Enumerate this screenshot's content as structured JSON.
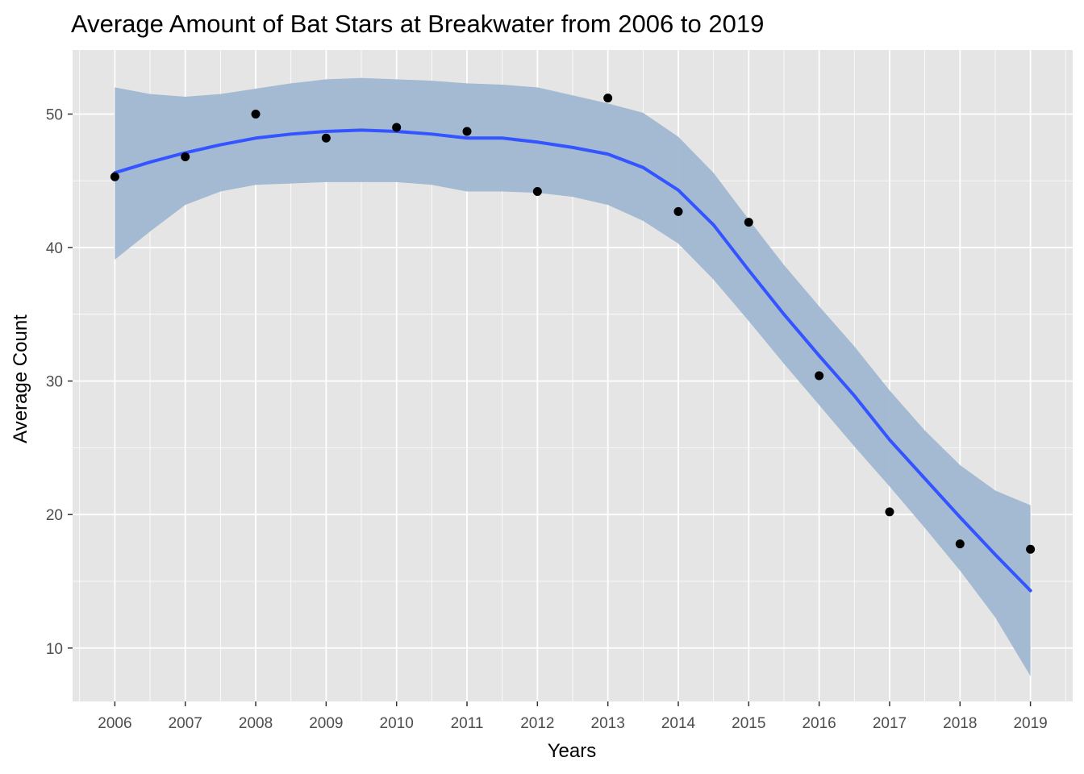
{
  "chart_data": {
    "type": "scatter",
    "title": "Average Amount of Bat Stars at Breakwater from 2006 to 2019",
    "xlabel": "Years",
    "ylabel": "Average Count",
    "x_tick_labels": [
      "2006",
      "2007",
      "2008",
      "2009",
      "2010",
      "2011",
      "2012",
      "2013",
      "2014",
      "2015",
      "2016",
      "2017",
      "2018",
      "2019"
    ],
    "y_tick_labels": [
      "10",
      "20",
      "30",
      "40",
      "50"
    ],
    "xlim": [
      2005.4,
      2019.6
    ],
    "ylim": [
      6,
      54.8
    ],
    "grid": true,
    "legend": "none",
    "points": {
      "x": [
        2006,
        2007,
        2008,
        2009,
        2010,
        2011,
        2012,
        2013,
        2014,
        2015,
        2016,
        2017,
        2018,
        2019
      ],
      "y": [
        45.3,
        46.8,
        50.0,
        48.2,
        49.0,
        48.7,
        44.2,
        51.2,
        42.7,
        41.9,
        30.4,
        20.2,
        17.8,
        17.4
      ]
    },
    "smooth": {
      "x": [
        2006,
        2006.5,
        2007,
        2007.5,
        2008,
        2008.5,
        2009,
        2009.5,
        2010,
        2010.5,
        2011,
        2011.5,
        2012,
        2012.5,
        2013,
        2013.5,
        2014,
        2014.5,
        2015,
        2015.5,
        2016,
        2016.5,
        2017,
        2017.5,
        2018,
        2018.5,
        2019
      ],
      "fit": [
        45.6,
        46.4,
        47.1,
        47.7,
        48.2,
        48.5,
        48.7,
        48.8,
        48.7,
        48.5,
        48.2,
        48.2,
        47.9,
        47.5,
        47.0,
        46.0,
        44.3,
        41.7,
        38.3,
        35.0,
        31.9,
        28.9,
        25.6,
        22.7,
        19.8,
        17.0,
        14.3
      ],
      "lower": [
        39.1,
        41.2,
        43.2,
        44.2,
        44.7,
        44.8,
        44.9,
        44.9,
        44.9,
        44.7,
        44.2,
        44.2,
        44.1,
        43.8,
        43.2,
        42.0,
        40.3,
        37.6,
        34.5,
        31.3,
        28.2,
        25.1,
        22.1,
        19.0,
        15.8,
        12.3,
        7.9
      ],
      "upper": [
        52.0,
        51.5,
        51.3,
        51.5,
        51.9,
        52.3,
        52.6,
        52.7,
        52.6,
        52.5,
        52.3,
        52.2,
        52.0,
        51.4,
        50.8,
        50.1,
        48.3,
        45.6,
        42.1,
        38.7,
        35.6,
        32.6,
        29.3,
        26.3,
        23.7,
        21.8,
        20.7
      ]
    },
    "colors": {
      "panel": "#e5e5e5",
      "grid": "#ffffff",
      "ribbon": "#9fb7d1",
      "line": "#3454ff",
      "point": "#000000",
      "tick_text": "#4d4d4d",
      "title_text": "#000000"
    }
  }
}
